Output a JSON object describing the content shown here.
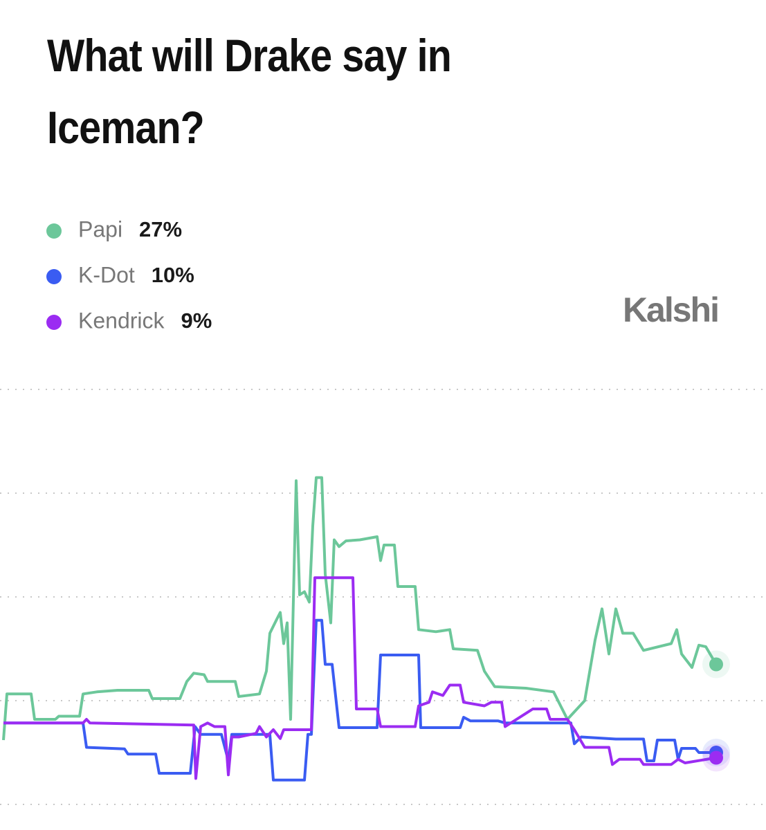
{
  "chart_data": {
    "type": "line",
    "title": "What will Drake say in Iceman?",
    "brand": "Kalshi",
    "xlim": [
      0,
      103
    ],
    "ylim": [
      0,
      80
    ],
    "yticks": [
      0,
      20,
      40,
      60,
      80
    ],
    "grid": true,
    "series": [
      {
        "name": "Papi",
        "color": "#6cc79a",
        "current": 27,
        "current_label": "27%",
        "x": [
          0,
          0.5,
          4,
          4.5,
          7.5,
          8,
          11,
          11.5,
          13.5,
          16.5,
          21,
          21.5,
          25.5,
          26.5,
          27.5,
          29,
          29.5,
          33.5,
          34,
          37,
          38,
          38.5,
          39.5,
          40,
          40.5,
          41,
          41.5,
          42.3,
          42.8,
          43.5,
          44.2,
          44.7,
          45.2,
          46,
          46.5,
          47.3,
          47.8,
          48.5,
          49.5,
          51.5,
          54,
          54.5,
          55,
          56.5,
          57,
          59.5,
          60,
          62.5,
          64.5,
          65,
          68.5,
          69.5,
          71,
          75.5,
          79.5,
          81.5,
          84,
          85.5,
          86.5,
          87.5,
          88.5,
          89.5,
          91,
          92.5,
          96.5,
          97.3,
          98,
          99.5,
          100.5,
          101.5,
          103
        ],
        "values": [
          12.4,
          21.3,
          21.3,
          16.4,
          16.4,
          17,
          17,
          21.3,
          21.7,
          22,
          22,
          20.4,
          20.4,
          23.7,
          25.3,
          25,
          23.7,
          23.7,
          20.8,
          21.3,
          25.7,
          33,
          35.7,
          37,
          31,
          35,
          16.4,
          62.4,
          40.4,
          41,
          39,
          53.7,
          63,
          63,
          44.4,
          35,
          51,
          49.7,
          50.8,
          51,
          51.6,
          47,
          50,
          50,
          42,
          42,
          33.7,
          33.3,
          33.7,
          30,
          29.7,
          25.7,
          22.7,
          22.4,
          21.7,
          16.4,
          20,
          31.7,
          37.7,
          29,
          37.7,
          33,
          33,
          29.7,
          31,
          33.7,
          29,
          26.4,
          30.7,
          30.4,
          27
        ]
      },
      {
        "name": "K-Dot",
        "color": "#3a5cf2",
        "current": 10,
        "current_label": "10%",
        "x": [
          0,
          11.5,
          12,
          17.5,
          18,
          22,
          22.5,
          27,
          27.7,
          28.5,
          31.5,
          32.5,
          33,
          37,
          38.5,
          39,
          43.5,
          44,
          44.5,
          45.2,
          46,
          46.5,
          47.5,
          48.5,
          54,
          54.5,
          60,
          60.3,
          66,
          66.5,
          67.5,
          71.5,
          72.5,
          82,
          82.5,
          83.5,
          88.5,
          92.5,
          93,
          94,
          94.5,
          97,
          97.5,
          98,
          100,
          100.5,
          103
        ],
        "values": [
          15.7,
          15.7,
          11,
          10.7,
          9.7,
          9.7,
          6,
          6,
          15,
          13.5,
          13.5,
          8.4,
          13.5,
          13.5,
          13.5,
          4.7,
          4.7,
          13.5,
          13.5,
          35.5,
          35.5,
          27,
          27,
          14.8,
          14.8,
          28.8,
          28.8,
          14.8,
          14.8,
          16.8,
          16.1,
          16.1,
          15.7,
          15.7,
          11.7,
          13,
          12.6,
          12.6,
          8.4,
          8.4,
          12.4,
          12.4,
          8.7,
          10.8,
          10.8,
          10,
          10
        ]
      },
      {
        "name": "Kendrick",
        "color": "#9b2cf2",
        "current": 9,
        "current_label": "9%",
        "x": [
          0,
          11.5,
          12,
          12.5,
          27.5,
          27.8,
          28.5,
          29.5,
          30.5,
          32,
          32.5,
          33,
          34,
          36.5,
          37,
          38,
          39,
          40,
          40.5,
          44.5,
          45,
          50.5,
          51,
          54,
          54.5,
          59.5,
          60,
          61.5,
          62,
          63.5,
          64.5,
          66,
          66.5,
          69.5,
          70.5,
          72,
          72.5,
          76.5,
          78.5,
          79,
          81.5,
          82.5,
          84,
          87.5,
          88,
          89,
          92,
          92.5,
          96.5,
          97.5,
          98.5,
          103
        ],
        "values": [
          15.7,
          15.7,
          16.4,
          15.7,
          15.3,
          5,
          15,
          15.7,
          15,
          15,
          5.7,
          13,
          13,
          13.7,
          15,
          13,
          14.4,
          12.7,
          14.4,
          14.4,
          43.7,
          43.7,
          18.4,
          18.4,
          15,
          15,
          19,
          19.7,
          21.7,
          21,
          23,
          23,
          19.7,
          19,
          19.7,
          19.7,
          15,
          18.4,
          18.4,
          16.4,
          16.4,
          14.4,
          11,
          11,
          7.7,
          8.7,
          8.7,
          7.7,
          7.7,
          8.7,
          8,
          9
        ]
      }
    ]
  }
}
